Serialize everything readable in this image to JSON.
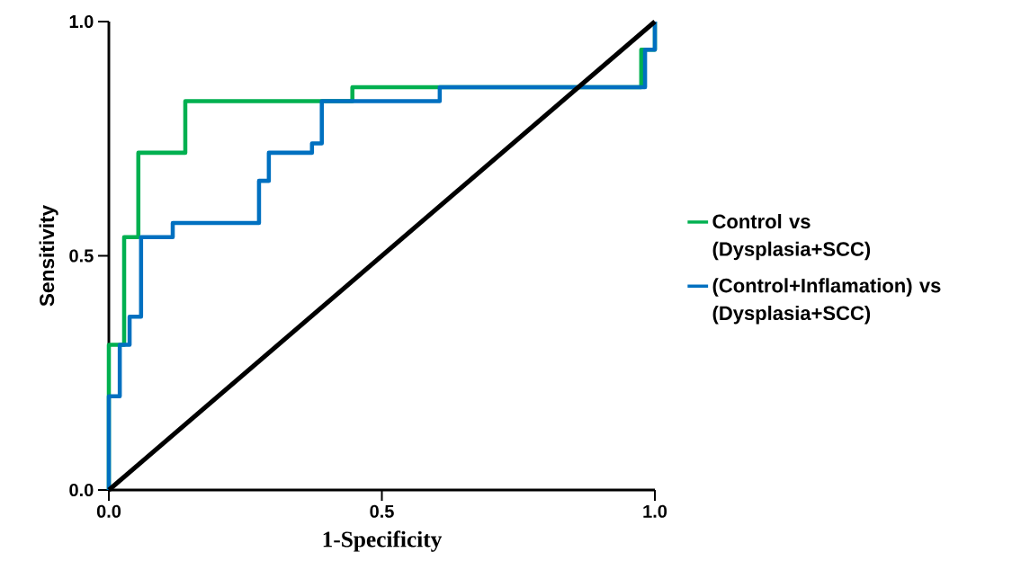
{
  "chart_data": {
    "type": "line",
    "xlabel": "1-Specificity",
    "ylabel": "Sensitivity",
    "xlim": [
      0,
      1
    ],
    "ylim": [
      0,
      1
    ],
    "xticks": [
      {
        "value": 0,
        "label": "0.0"
      },
      {
        "value": 0.5,
        "label": "0.5"
      },
      {
        "value": 1,
        "label": "1.0"
      }
    ],
    "yticks": [
      {
        "value": 0,
        "label": "0.0"
      },
      {
        "value": 0.5,
        "label": "0.5"
      },
      {
        "value": 1,
        "label": "1.0"
      }
    ],
    "grid": false,
    "legend": "right",
    "marker": "none",
    "line_style": "solid",
    "series": [
      {
        "name": "Control vs (Dysplasia+SCC)",
        "color": "#00b050",
        "x": [
          0,
          0,
          0.028,
          0.028,
          0.054,
          0.054,
          0.14,
          0.14,
          0.446,
          0.446,
          0.975,
          0.975,
          1,
          1
        ],
        "values": [
          0,
          0.31,
          0.31,
          0.54,
          0.54,
          0.72,
          0.72,
          0.83,
          0.83,
          0.86,
          0.86,
          0.94,
          0.94,
          1
        ]
      },
      {
        "name": "(Control+Inflamation) vs (Dysplasia+SCC)",
        "color": "#0070c0",
        "x": [
          0,
          0,
          0.02,
          0.02,
          0.038,
          0.038,
          0.059,
          0.059,
          0.117,
          0.117,
          0.275,
          0.275,
          0.293,
          0.293,
          0.372,
          0.372,
          0.39,
          0.39,
          0.606,
          0.606,
          0.982,
          0.982,
          1,
          1
        ],
        "values": [
          0,
          0.2,
          0.2,
          0.31,
          0.31,
          0.37,
          0.37,
          0.54,
          0.54,
          0.57,
          0.57,
          0.66,
          0.66,
          0.72,
          0.72,
          0.74,
          0.74,
          0.83,
          0.83,
          0.86,
          0.86,
          0.94,
          0.94,
          1
        ]
      },
      {
        "color": "#000000",
        "x": [
          0,
          1
        ],
        "values": [
          0,
          1
        ]
      }
    ]
  }
}
